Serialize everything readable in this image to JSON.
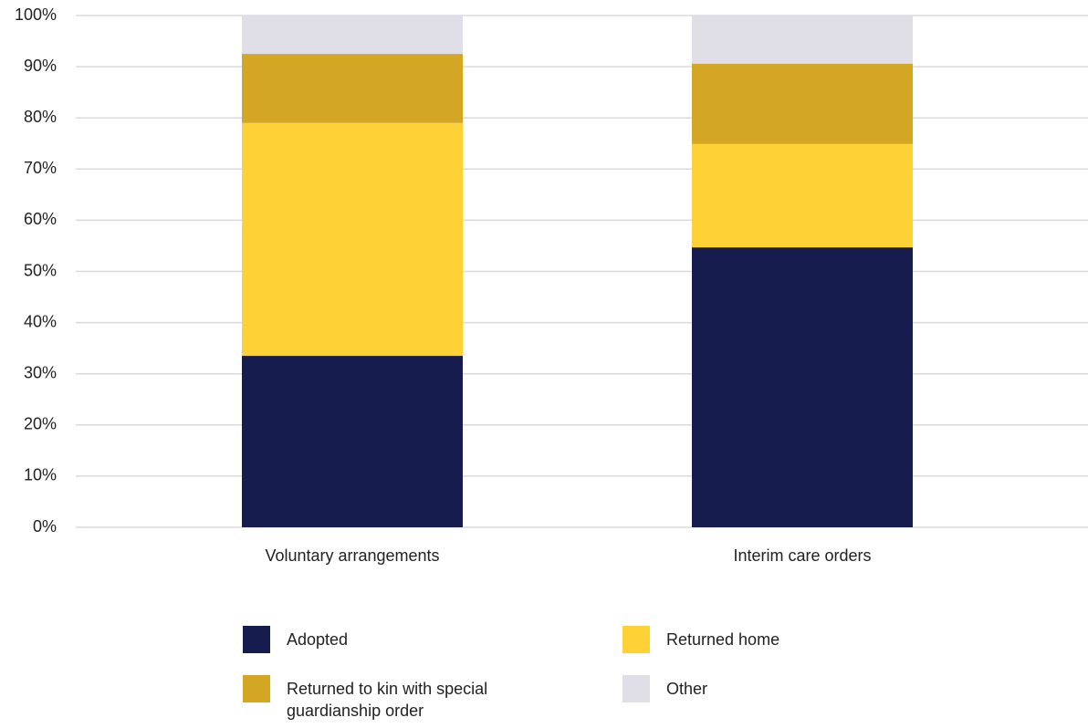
{
  "chart_data": {
    "type": "stacked_bar",
    "categories": [
      "Voluntary arrangements",
      "Interim care orders"
    ],
    "series": [
      {
        "name": "Adopted",
        "color": "#171c4e",
        "values": [
          33.5,
          54.7
        ]
      },
      {
        "name": "Returned home",
        "color": "#fed137",
        "values": [
          45.5,
          20.2
        ]
      },
      {
        "name": "Returned to kin with special guardianship order",
        "color": "#d3a624",
        "values": [
          13.5,
          15.7
        ]
      },
      {
        "name": "Other",
        "color": "#e0dfe8",
        "values": [
          7.5,
          9.4
        ]
      }
    ],
    "ylim": [
      0,
      100
    ],
    "yticks": [
      {
        "value": 0,
        "label": "0%"
      },
      {
        "value": 10,
        "label": "10%"
      },
      {
        "value": 20,
        "label": "20%"
      },
      {
        "value": 30,
        "label": "30%"
      },
      {
        "value": 40,
        "label": "40%"
      },
      {
        "value": 50,
        "label": "50%"
      },
      {
        "value": 60,
        "label": "60%"
      },
      {
        "value": 70,
        "label": "70%"
      },
      {
        "value": 80,
        "label": "80%"
      },
      {
        "value": 90,
        "label": "90%"
      },
      {
        "value": 100,
        "label": "100%"
      }
    ],
    "grid": true
  }
}
